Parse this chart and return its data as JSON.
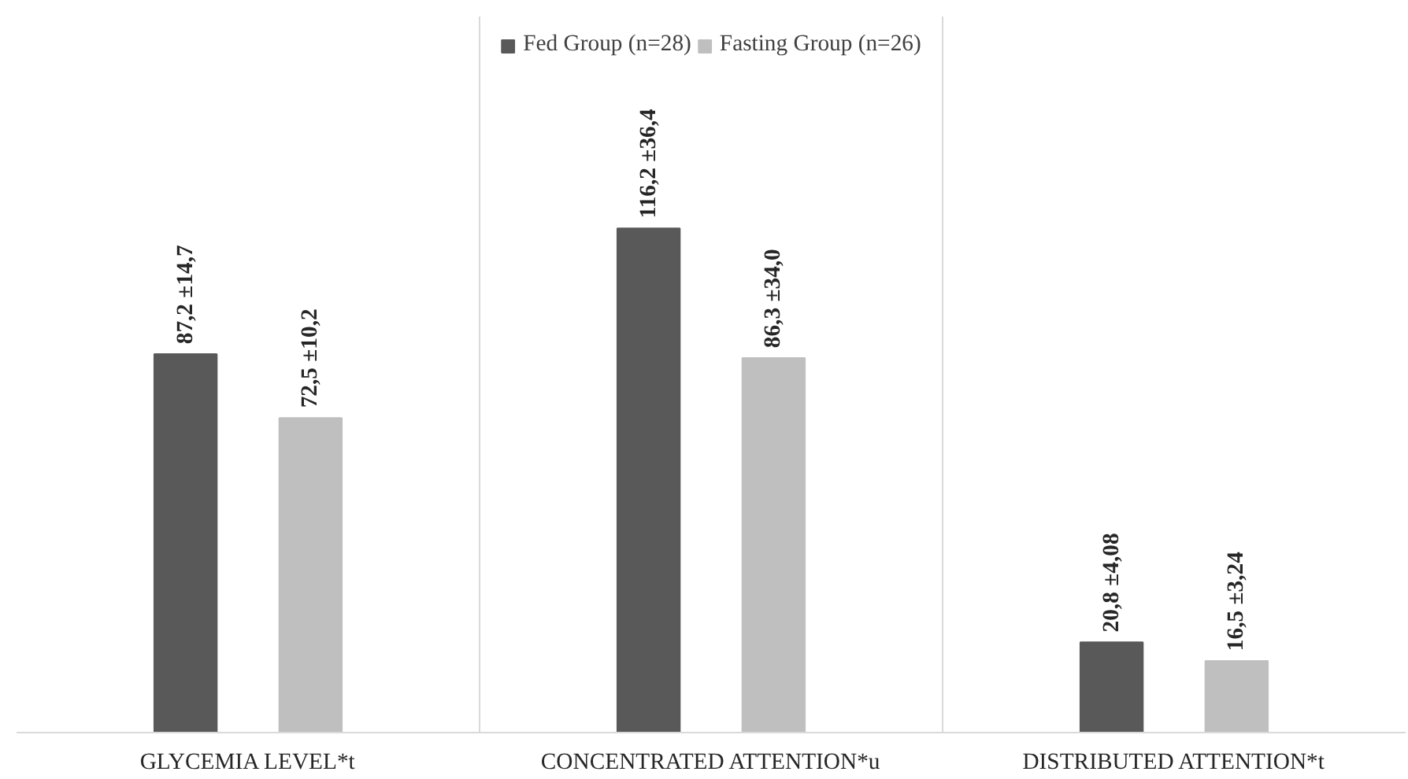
{
  "chart_data": {
    "type": "bar",
    "categories": [
      "GLYCEMIA LEVEL*t",
      "CONCENTRATED ATTENTION*u",
      "DISTRIBUTED ATTENTION*t"
    ],
    "series": [
      {
        "name": "Fed Group (n=28)",
        "color": "#595959",
        "values": [
          87.2,
          116.2,
          20.8
        ],
        "value_labels": [
          "87,2 ±14,7",
          "116,2 ±36,4",
          "20,8 ±4,08"
        ]
      },
      {
        "name": "Fasting Group (n=26)",
        "color": "#bfbfbf",
        "values": [
          72.5,
          86.3,
          16.5
        ],
        "value_labels": [
          "72,5 ±10,2",
          "86,3 ±34,0",
          "16,5 ±3,24"
        ]
      }
    ],
    "legend": "top",
    "grid": "x"
  }
}
